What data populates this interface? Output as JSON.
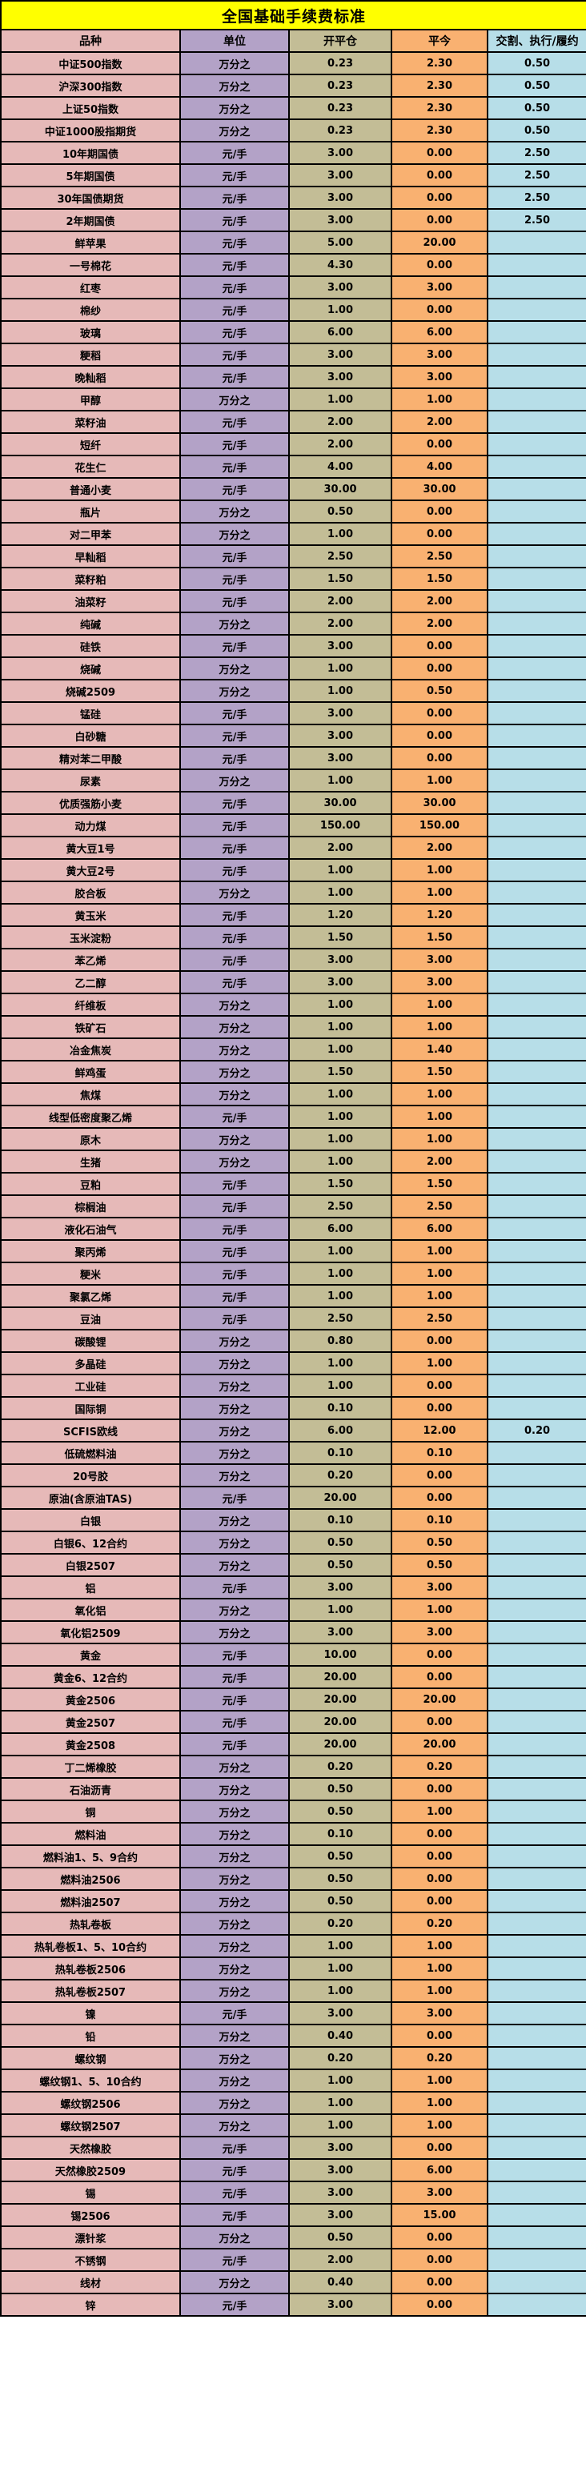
{
  "title": "全国基础手续费标准",
  "colors": {
    "title_bg": "#FFFF00",
    "product_col_bg": "#E6B9B8",
    "unit_col_bg": "#B3A2C7",
    "open_close_col_bg": "#C3BD96",
    "close_today_col_bg": "#F9B171",
    "delivery_col_bg": "#B7DEE8",
    "border": "#000000",
    "text": "#000000"
  },
  "table": {
    "columns": [
      "品种",
      "单位",
      "开平仓",
      "平今",
      "交割、执行/履约"
    ],
    "rows": [
      [
        "中证500指数",
        "万分之",
        "0.23",
        "2.30",
        "0.50"
      ],
      [
        "沪深300指数",
        "万分之",
        "0.23",
        "2.30",
        "0.50"
      ],
      [
        "上证50指数",
        "万分之",
        "0.23",
        "2.30",
        "0.50"
      ],
      [
        "中证1000股指期货",
        "万分之",
        "0.23",
        "2.30",
        "0.50"
      ],
      [
        "10年期国债",
        "元/手",
        "3.00",
        "0.00",
        "2.50"
      ],
      [
        "5年期国债",
        "元/手",
        "3.00",
        "0.00",
        "2.50"
      ],
      [
        "30年国债期货",
        "元/手",
        "3.00",
        "0.00",
        "2.50"
      ],
      [
        "2年期国债",
        "元/手",
        "3.00",
        "0.00",
        "2.50"
      ],
      [
        "鲜苹果",
        "元/手",
        "5.00",
        "20.00",
        ""
      ],
      [
        "一号棉花",
        "元/手",
        "4.30",
        "0.00",
        ""
      ],
      [
        "红枣",
        "元/手",
        "3.00",
        "3.00",
        ""
      ],
      [
        "棉纱",
        "元/手",
        "1.00",
        "0.00",
        ""
      ],
      [
        "玻璃",
        "元/手",
        "6.00",
        "6.00",
        ""
      ],
      [
        "粳稻",
        "元/手",
        "3.00",
        "3.00",
        ""
      ],
      [
        "晚籼稻",
        "元/手",
        "3.00",
        "3.00",
        ""
      ],
      [
        "甲醇",
        "万分之",
        "1.00",
        "1.00",
        ""
      ],
      [
        "菜籽油",
        "元/手",
        "2.00",
        "2.00",
        ""
      ],
      [
        "短纤",
        "元/手",
        "2.00",
        "0.00",
        ""
      ],
      [
        "花生仁",
        "元/手",
        "4.00",
        "4.00",
        ""
      ],
      [
        "普通小麦",
        "元/手",
        "30.00",
        "30.00",
        ""
      ],
      [
        "瓶片",
        "万分之",
        "0.50",
        "0.00",
        ""
      ],
      [
        "对二甲苯",
        "万分之",
        "1.00",
        "0.00",
        ""
      ],
      [
        "早籼稻",
        "元/手",
        "2.50",
        "2.50",
        ""
      ],
      [
        "菜籽粕",
        "元/手",
        "1.50",
        "1.50",
        ""
      ],
      [
        "油菜籽",
        "元/手",
        "2.00",
        "2.00",
        ""
      ],
      [
        "纯碱",
        "万分之",
        "2.00",
        "2.00",
        ""
      ],
      [
        "硅铁",
        "元/手",
        "3.00",
        "0.00",
        ""
      ],
      [
        "烧碱",
        "万分之",
        "1.00",
        "0.00",
        ""
      ],
      [
        "烧碱2509",
        "万分之",
        "1.00",
        "0.50",
        ""
      ],
      [
        "锰硅",
        "元/手",
        "3.00",
        "0.00",
        ""
      ],
      [
        "白砂糖",
        "元/手",
        "3.00",
        "0.00",
        ""
      ],
      [
        "精对苯二甲酸",
        "元/手",
        "3.00",
        "0.00",
        ""
      ],
      [
        "尿素",
        "万分之",
        "1.00",
        "1.00",
        ""
      ],
      [
        "优质强筋小麦",
        "元/手",
        "30.00",
        "30.00",
        ""
      ],
      [
        "动力煤",
        "元/手",
        "150.00",
        "150.00",
        ""
      ],
      [
        "黄大豆1号",
        "元/手",
        "2.00",
        "2.00",
        ""
      ],
      [
        "黄大豆2号",
        "元/手",
        "1.00",
        "1.00",
        ""
      ],
      [
        "胶合板",
        "万分之",
        "1.00",
        "1.00",
        ""
      ],
      [
        "黄玉米",
        "元/手",
        "1.20",
        "1.20",
        ""
      ],
      [
        "玉米淀粉",
        "元/手",
        "1.50",
        "1.50",
        ""
      ],
      [
        "苯乙烯",
        "元/手",
        "3.00",
        "3.00",
        ""
      ],
      [
        "乙二醇",
        "元/手",
        "3.00",
        "3.00",
        ""
      ],
      [
        "纤维板",
        "万分之",
        "1.00",
        "1.00",
        ""
      ],
      [
        "铁矿石",
        "万分之",
        "1.00",
        "1.00",
        ""
      ],
      [
        "冶金焦炭",
        "万分之",
        "1.00",
        "1.40",
        ""
      ],
      [
        "鲜鸡蛋",
        "万分之",
        "1.50",
        "1.50",
        ""
      ],
      [
        "焦煤",
        "万分之",
        "1.00",
        "1.00",
        ""
      ],
      [
        "线型低密度聚乙烯",
        "元/手",
        "1.00",
        "1.00",
        ""
      ],
      [
        "原木",
        "万分之",
        "1.00",
        "1.00",
        ""
      ],
      [
        "生猪",
        "万分之",
        "1.00",
        "2.00",
        ""
      ],
      [
        "豆粕",
        "元/手",
        "1.50",
        "1.50",
        ""
      ],
      [
        "棕榈油",
        "元/手",
        "2.50",
        "2.50",
        ""
      ],
      [
        "液化石油气",
        "元/手",
        "6.00",
        "6.00",
        ""
      ],
      [
        "聚丙烯",
        "元/手",
        "1.00",
        "1.00",
        ""
      ],
      [
        "粳米",
        "元/手",
        "1.00",
        "1.00",
        ""
      ],
      [
        "聚氯乙烯",
        "元/手",
        "1.00",
        "1.00",
        ""
      ],
      [
        "豆油",
        "元/手",
        "2.50",
        "2.50",
        ""
      ],
      [
        "碳酸锂",
        "万分之",
        "0.80",
        "0.00",
        ""
      ],
      [
        "多晶硅",
        "万分之",
        "1.00",
        "1.00",
        ""
      ],
      [
        "工业硅",
        "万分之",
        "1.00",
        "0.00",
        ""
      ],
      [
        "国际铜",
        "万分之",
        "0.10",
        "0.00",
        ""
      ],
      [
        "SCFIS欧线",
        "万分之",
        "6.00",
        "12.00",
        "0.20"
      ],
      [
        "低硫燃料油",
        "万分之",
        "0.10",
        "0.10",
        ""
      ],
      [
        "20号胶",
        "万分之",
        "0.20",
        "0.00",
        ""
      ],
      [
        "原油(含原油TAS)",
        "元/手",
        "20.00",
        "0.00",
        ""
      ],
      [
        "白银",
        "万分之",
        "0.10",
        "0.10",
        ""
      ],
      [
        "白银6、12合约",
        "万分之",
        "0.50",
        "0.50",
        ""
      ],
      [
        "白银2507",
        "万分之",
        "0.50",
        "0.50",
        ""
      ],
      [
        "铝",
        "元/手",
        "3.00",
        "3.00",
        ""
      ],
      [
        "氧化铝",
        "万分之",
        "1.00",
        "1.00",
        ""
      ],
      [
        "氧化铝2509",
        "万分之",
        "3.00",
        "3.00",
        ""
      ],
      [
        "黄金",
        "元/手",
        "10.00",
        "0.00",
        ""
      ],
      [
        "黄金6、12合约",
        "元/手",
        "20.00",
        "0.00",
        ""
      ],
      [
        "黄金2506",
        "元/手",
        "20.00",
        "20.00",
        ""
      ],
      [
        "黄金2507",
        "元/手",
        "20.00",
        "0.00",
        ""
      ],
      [
        "黄金2508",
        "元/手",
        "20.00",
        "20.00",
        ""
      ],
      [
        "丁二烯橡胶",
        "万分之",
        "0.20",
        "0.20",
        ""
      ],
      [
        "石油沥青",
        "万分之",
        "0.50",
        "0.00",
        ""
      ],
      [
        "铜",
        "万分之",
        "0.50",
        "1.00",
        ""
      ],
      [
        "燃料油",
        "万分之",
        "0.10",
        "0.00",
        ""
      ],
      [
        "燃料油1、5、9合约",
        "万分之",
        "0.50",
        "0.00",
        ""
      ],
      [
        "燃料油2506",
        "万分之",
        "0.50",
        "0.00",
        ""
      ],
      [
        "燃料油2507",
        "万分之",
        "0.50",
        "0.00",
        ""
      ],
      [
        "热轧卷板",
        "万分之",
        "0.20",
        "0.20",
        ""
      ],
      [
        "热轧卷板1、5、10合约",
        "万分之",
        "1.00",
        "1.00",
        ""
      ],
      [
        "热轧卷板2506",
        "万分之",
        "1.00",
        "1.00",
        ""
      ],
      [
        "热轧卷板2507",
        "万分之",
        "1.00",
        "1.00",
        ""
      ],
      [
        "镍",
        "元/手",
        "3.00",
        "3.00",
        ""
      ],
      [
        "铅",
        "万分之",
        "0.40",
        "0.00",
        ""
      ],
      [
        "螺纹钢",
        "万分之",
        "0.20",
        "0.20",
        ""
      ],
      [
        "螺纹钢1、5、10合约",
        "万分之",
        "1.00",
        "1.00",
        ""
      ],
      [
        "螺纹钢2506",
        "万分之",
        "1.00",
        "1.00",
        ""
      ],
      [
        "螺纹钢2507",
        "万分之",
        "1.00",
        "1.00",
        ""
      ],
      [
        "天然橡胶",
        "元/手",
        "3.00",
        "0.00",
        ""
      ],
      [
        "天然橡胶2509",
        "元/手",
        "3.00",
        "6.00",
        ""
      ],
      [
        "锡",
        "元/手",
        "3.00",
        "3.00",
        ""
      ],
      [
        "锡2506",
        "元/手",
        "3.00",
        "15.00",
        ""
      ],
      [
        "漂针浆",
        "万分之",
        "0.50",
        "0.00",
        ""
      ],
      [
        "不锈钢",
        "元/手",
        "2.00",
        "0.00",
        ""
      ],
      [
        "线材",
        "万分之",
        "0.40",
        "0.00",
        ""
      ],
      [
        "锌",
        "元/手",
        "3.00",
        "0.00",
        ""
      ]
    ]
  }
}
